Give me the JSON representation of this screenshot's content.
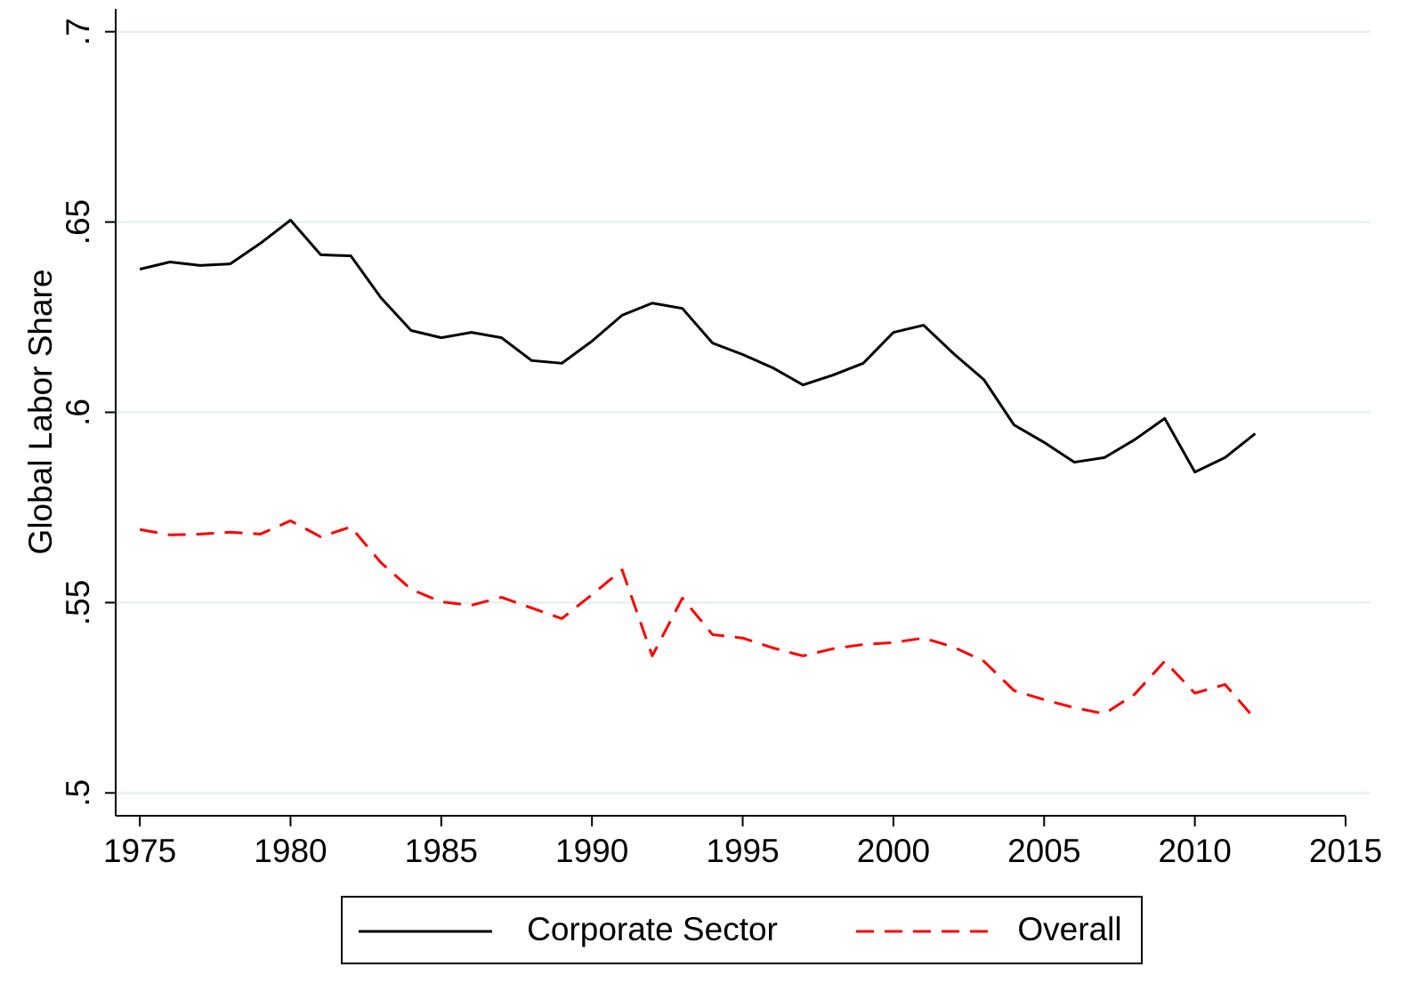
{
  "chart_data": {
    "type": "line",
    "y_label": "Global Labor Share",
    "x": [
      1975,
      1976,
      1977,
      1978,
      1979,
      1980,
      1981,
      1982,
      1983,
      1984,
      1985,
      1986,
      1987,
      1988,
      1989,
      1990,
      1991,
      1992,
      1993,
      1994,
      1995,
      1996,
      1997,
      1998,
      1999,
      2000,
      2001,
      2002,
      2003,
      2004,
      2005,
      2006,
      2007,
      2008,
      2009,
      2010,
      2011,
      2012
    ],
    "series": [
      {
        "name": "Corporate Sector",
        "color": "#000000",
        "dash": false,
        "values": [
          0.6376,
          0.6395,
          0.6386,
          0.639,
          0.6444,
          0.6505,
          0.6414,
          0.6411,
          0.6301,
          0.6215,
          0.6196,
          0.621,
          0.6196,
          0.6136,
          0.6129,
          0.6187,
          0.6255,
          0.6287,
          0.6273,
          0.6182,
          0.6152,
          0.6117,
          0.6072,
          0.6098,
          0.6129,
          0.621,
          0.6229,
          0.6154,
          0.6086,
          0.5967,
          0.5921,
          0.5869,
          0.5881,
          0.5928,
          0.5984,
          0.5843,
          0.5881,
          0.5944
        ]
      },
      {
        "name": "Overall",
        "color": "#ff0000",
        "dash": true,
        "values": [
          0.5692,
          0.5678,
          0.568,
          0.5685,
          0.568,
          0.5715,
          0.5673,
          0.5699,
          0.5605,
          0.5535,
          0.5502,
          0.5493,
          0.5514,
          0.5486,
          0.5458,
          0.5521,
          0.5586,
          0.536,
          0.5512,
          0.5416,
          0.5407,
          0.5381,
          0.536,
          0.5379,
          0.539,
          0.5395,
          0.5407,
          0.5383,
          0.5346,
          0.5269,
          0.5245,
          0.5224,
          0.5208,
          0.5259,
          0.5346,
          0.5262,
          0.5285,
          0.5194
        ]
      }
    ],
    "xlim": [
      1974.2,
      2015
    ],
    "xticks": [
      1975,
      1980,
      1985,
      1990,
      1995,
      2000,
      2005,
      2010,
      2015
    ],
    "ylim": [
      0.494,
      0.706
    ],
    "yticks": [
      {
        "value": 0.5,
        "label": ".5"
      },
      {
        "value": 0.55,
        "label": ".55"
      },
      {
        "value": 0.6,
        "label": ".6"
      },
      {
        "value": 0.65,
        "label": ".65"
      },
      {
        "value": 0.7,
        "label": ".7"
      }
    ],
    "grid": true,
    "legend": "bottom"
  }
}
